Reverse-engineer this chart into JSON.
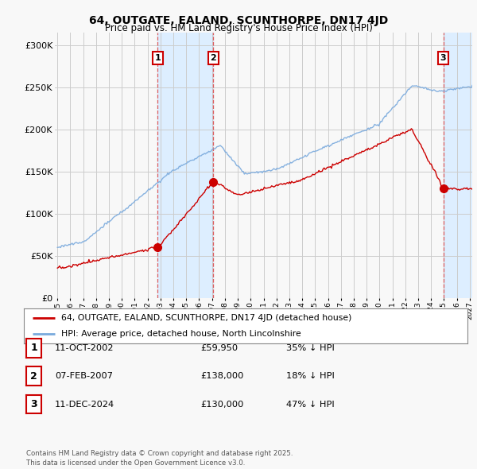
{
  "title": "64, OUTGATE, EALAND, SCUNTHORPE, DN17 4JD",
  "subtitle": "Price paid vs. HM Land Registry's House Price Index (HPI)",
  "ylabel_ticks": [
    "£0",
    "£50K",
    "£100K",
    "£150K",
    "£200K",
    "£250K",
    "£300K"
  ],
  "ytick_values": [
    0,
    50000,
    100000,
    150000,
    200000,
    250000,
    300000
  ],
  "ylim": [
    0,
    315000
  ],
  "xlim_start": 1994.8,
  "xlim_end": 2027.2,
  "transaction_dates": [
    2002.79,
    2007.1,
    2024.95
  ],
  "transaction_prices": [
    59950,
    138000,
    130000
  ],
  "transaction_labels": [
    "1",
    "2",
    "3"
  ],
  "shade1_start": 2002.79,
  "shade1_end": 2007.1,
  "shade2_start": 2024.95,
  "shade2_end": 2027.2,
  "red_line_color": "#cc0000",
  "blue_line_color": "#7aaadd",
  "shade1_color": "#ddeeff",
  "grid_color": "#cccccc",
  "background_color": "#f8f8f8",
  "legend_entries": [
    "64, OUTGATE, EALAND, SCUNTHORPE, DN17 4JD (detached house)",
    "HPI: Average price, detached house, North Lincolnshire"
  ],
  "table_entries": [
    {
      "num": "1",
      "date": "11-OCT-2002",
      "price": "£59,950",
      "pct": "35% ↓ HPI"
    },
    {
      "num": "2",
      "date": "07-FEB-2007",
      "price": "£138,000",
      "pct": "18% ↓ HPI"
    },
    {
      "num": "3",
      "date": "11-DEC-2024",
      "price": "£130,000",
      "pct": "47% ↓ HPI"
    }
  ],
  "footnote": "Contains HM Land Registry data © Crown copyright and database right 2025.\nThis data is licensed under the Open Government Licence v3.0."
}
